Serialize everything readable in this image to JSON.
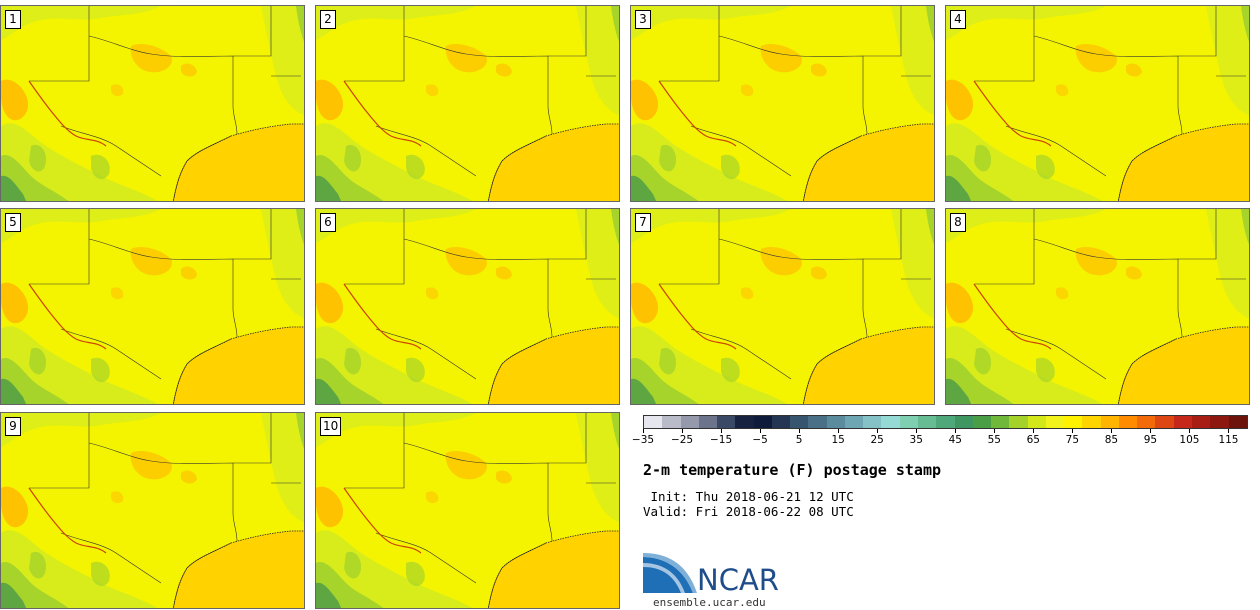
{
  "members": [
    "1",
    "2",
    "3",
    "4",
    "5",
    "6",
    "7",
    "8",
    "9",
    "10"
  ],
  "title": "2-m temperature (F) postage stamp",
  "init": " Init: Thu 2018-06-21 12 UTC",
  "valid": "Valid: Fri 2018-06-22 08 UTC",
  "logo": {
    "name": "NCAR",
    "website": "ensemble.ucar.edu"
  },
  "colorbar": {
    "min": -35,
    "max": 120,
    "step": 5,
    "tick_labels": [
      "−35",
      "−25",
      "−15",
      "−5",
      "5",
      "15",
      "25",
      "35",
      "45",
      "55",
      "65",
      "75",
      "85",
      "95",
      "105",
      "115"
    ],
    "colors": [
      "#e6e6ee",
      "#b9bcc8",
      "#9499ab",
      "#6c748c",
      "#3a4a66",
      "#16223f",
      "#0f1b3a",
      "#243653",
      "#385570",
      "#4a7088",
      "#5b8c9e",
      "#6fa6b4",
      "#84c2c8",
      "#96dad6",
      "#7fcfb2",
      "#68bc94",
      "#4fa87a",
      "#3f9660",
      "#4a9e46",
      "#70b83a",
      "#a4d22a",
      "#d2e818",
      "#f2f21c",
      "#fff200",
      "#ffd500",
      "#ffb400",
      "#ff8c00",
      "#f26a0a",
      "#de4614",
      "#c5281a",
      "#a81d14",
      "#8c1810",
      "#6e120c"
    ]
  },
  "map_colors": {
    "base": "#f4f400",
    "ocean": "#ffd200",
    "hot": "#ffc200",
    "cool": "#d8ec1c",
    "cooler": "#a6d42a",
    "coolest": "#5ea642",
    "state_border": "#333333",
    "river": "#cc4400"
  }
}
